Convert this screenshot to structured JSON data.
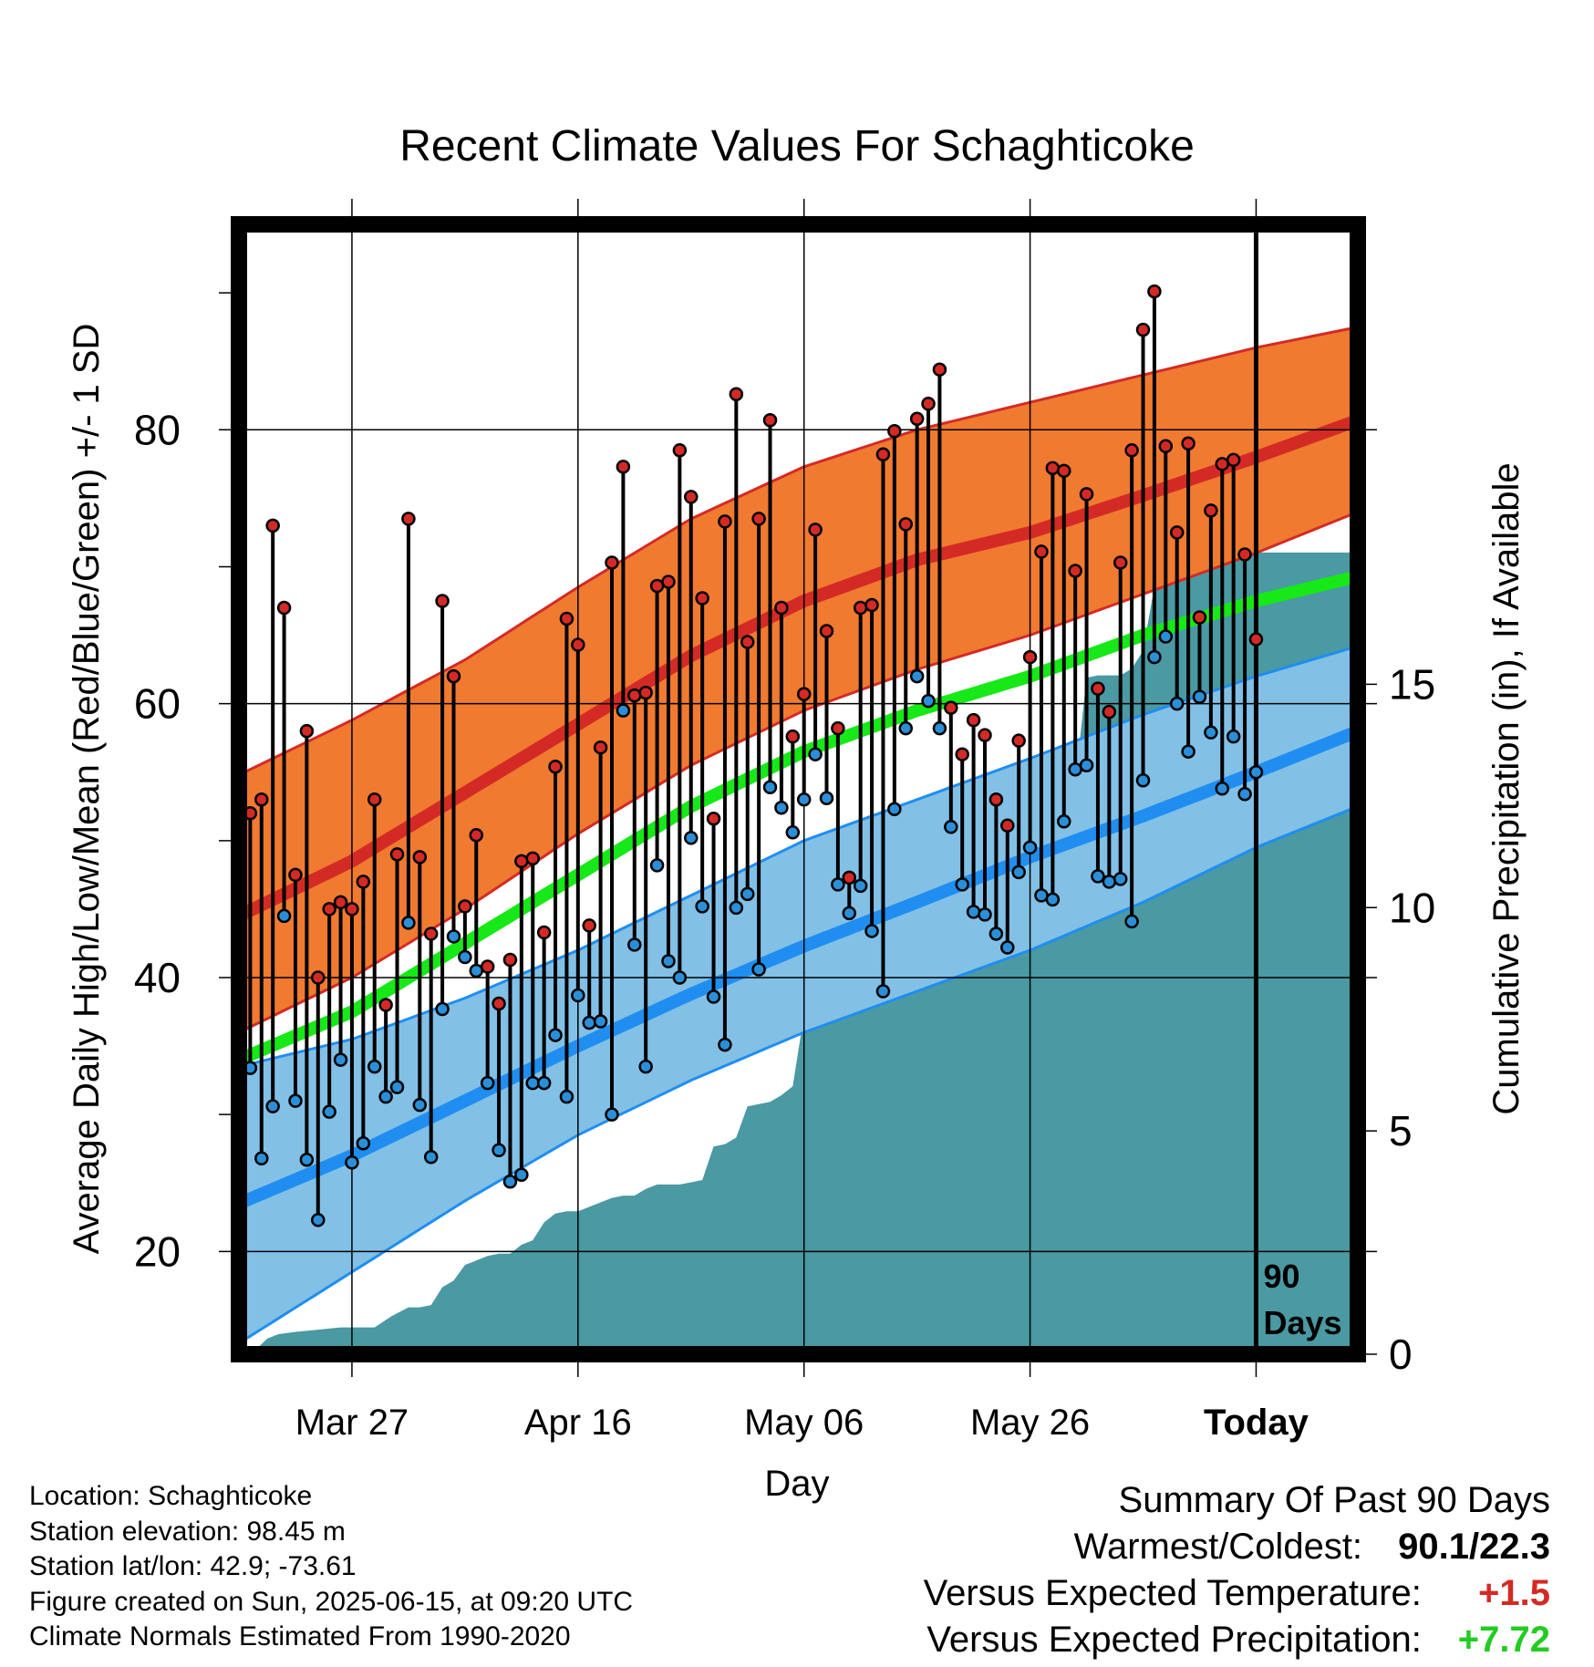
{
  "chart_data": {
    "type": "line",
    "title": "Recent Climate Values For Schaghticoke",
    "xlabel": "Day",
    "ylabel": "Average Daily High/Low/Mean (Red/Blue/Green) +/- 1 SD",
    "y2label": "Cumulative Precipitation (in), If Available",
    "ylim": [
      12.5,
      95
    ],
    "y_ticks": [
      20,
      40,
      60,
      80
    ],
    "y_minor_ticks": [
      30,
      50,
      70,
      90
    ],
    "y2lim": [
      0,
      25.3
    ],
    "y2_ticks": [
      0,
      5,
      10,
      15
    ],
    "x_range_days": [
      -90,
      9
    ],
    "x_ticks": [
      {
        "day": -80,
        "label": "Mar 27"
      },
      {
        "day": -60,
        "label": "Apr 16"
      },
      {
        "day": -40,
        "label": "May 06"
      },
      {
        "day": -20,
        "label": "May 26"
      },
      {
        "day": 0,
        "label": "Today"
      }
    ],
    "today_marker_label": [
      "90",
      "Days"
    ],
    "grid": true,
    "colors": {
      "high_band": "#f07a30",
      "high_mean": "#d42a25",
      "low_band": "#82c0e6",
      "low_mean": "#1f8ef0",
      "mean_line": "#17e817",
      "precip_fill": "#4a99a3",
      "high_point": "#d42a25",
      "low_point": "#2a8fd8"
    },
    "normals": {
      "days": [
        -90,
        -80,
        -70,
        -60,
        -50,
        -40,
        -30,
        -20,
        -10,
        0,
        9
      ],
      "high_mean": [
        44.5,
        48.5,
        53.5,
        58.5,
        63.5,
        67.5,
        70.5,
        72.5,
        75.2,
        78.0,
        80.7
      ],
      "high_upper": [
        54.8,
        58.8,
        63.2,
        68.5,
        73.5,
        77.3,
        80.0,
        82.0,
        84.0,
        86.0,
        87.5
      ],
      "high_lower": [
        36.0,
        40.0,
        45.0,
        50.5,
        55.5,
        59.5,
        62.5,
        65.0,
        68.0,
        71.0,
        74.0
      ],
      "low_mean": [
        23.5,
        27.0,
        31.0,
        35.0,
        38.8,
        42.3,
        45.5,
        48.8,
        51.8,
        55.0,
        58.0
      ],
      "low_upper": [
        33.5,
        35.5,
        38.5,
        42.0,
        46.0,
        50.0,
        53.0,
        56.0,
        59.2,
        62.0,
        64.2
      ],
      "low_lower": [
        13.3,
        18.5,
        23.7,
        28.5,
        32.5,
        36.0,
        39.0,
        42.0,
        45.5,
        49.5,
        52.5
      ],
      "mean": [
        34.0,
        37.5,
        42.5,
        47.5,
        52.5,
        56.5,
        59.5,
        62.0,
        65.0,
        67.5,
        69.3
      ]
    },
    "daily_high": [
      52,
      53,
      73,
      67,
      47.5,
      58,
      40,
      45,
      45.5,
      45,
      47,
      53,
      38,
      49,
      73.5,
      48.8,
      43.2,
      67.5,
      62,
      45.2,
      50.4,
      40.8,
      38.1,
      41.3,
      48.5,
      48.7,
      43.3,
      55.4,
      66.2,
      64.3,
      43.8,
      56.8,
      70.3,
      77.3,
      60.6,
      60.8,
      68.6,
      68.9,
      78.5,
      75.1,
      67.7,
      51.6,
      73.3,
      82.6,
      64.5,
      73.5,
      80.7,
      67.0,
      57.6,
      60.7,
      72.7,
      65.3,
      58.2,
      47.3,
      67.0,
      67.2,
      78.2,
      79.9,
      73.1,
      80.8,
      81.9,
      84.4,
      59.7,
      56.3,
      58.8,
      57.7,
      53.0,
      51.1,
      57.3,
      63.4,
      71.1,
      77.2,
      77.0,
      69.7,
      75.3,
      61.1,
      59.4,
      70.3,
      78.5,
      87.3,
      90.1,
      78.8,
      72.5,
      79.0,
      66.3,
      74.1,
      77.5,
      77.8,
      70.9,
      64.7
    ],
    "daily_low": [
      33.4,
      26.8,
      30.6,
      44.5,
      31.0,
      26.7,
      22.3,
      30.2,
      34.0,
      26.5,
      27.9,
      33.5,
      31.3,
      32.0,
      44.0,
      30.7,
      26.9,
      37.7,
      43.0,
      41.5,
      40.5,
      32.3,
      27.4,
      25.1,
      25.6,
      32.3,
      32.3,
      35.8,
      31.3,
      38.7,
      36.7,
      36.8,
      30.0,
      59.5,
      42.4,
      33.5,
      48.2,
      41.2,
      40.0,
      50.2,
      45.2,
      38.6,
      35.1,
      45.1,
      46.1,
      40.6,
      53.9,
      52.4,
      50.6,
      53.0,
      56.3,
      53.1,
      46.8,
      44.7,
      46.7,
      43.4,
      39.0,
      52.3,
      58.2,
      62.0,
      60.2,
      58.2,
      51.0,
      46.8,
      44.8,
      44.6,
      43.2,
      42.2,
      47.7,
      49.5,
      46.0,
      45.7,
      51.4,
      55.2,
      55.5,
      47.4,
      47.0,
      47.2,
      44.1,
      54.4,
      63.4,
      64.9,
      60.0,
      56.5,
      60.5,
      57.9,
      53.8,
      57.6,
      53.4,
      55.0
    ],
    "precip_cumulative": {
      "days": [
        -88.5,
        -87.5,
        -86.5,
        -85,
        -83,
        -81,
        -79.5,
        -78,
        -76.5,
        -75,
        -74,
        -73,
        -72,
        -71,
        -70,
        -69,
        -68,
        -67,
        -66,
        -65,
        -64,
        -63,
        -62,
        -61,
        -60,
        -59,
        -58,
        -57,
        -56,
        -55,
        -54,
        -53,
        -52,
        -51,
        -50,
        -49,
        -48,
        -47,
        -46,
        -45,
        -44,
        -43,
        -42,
        -41,
        -40,
        -39,
        -38,
        -37,
        -36,
        -35,
        -34,
        -33,
        -32,
        -31,
        -30,
        -29,
        -28,
        -27,
        -26,
        -25,
        -24,
        -23,
        -22,
        -21,
        -20,
        -19,
        -18,
        -17,
        -16,
        -15,
        -14,
        -13,
        -12,
        -11,
        -10,
        -9,
        -8,
        -7,
        -6,
        -5,
        -4,
        -3,
        -2,
        -1,
        0,
        9
      ],
      "values": [
        0.1,
        0.35,
        0.45,
        0.5,
        0.55,
        0.6,
        0.6,
        0.6,
        0.85,
        1.05,
        1.05,
        1.1,
        1.5,
        1.65,
        2.0,
        2.1,
        2.2,
        2.25,
        2.25,
        2.45,
        2.55,
        2.95,
        3.15,
        3.2,
        3.2,
        3.3,
        3.4,
        3.5,
        3.55,
        3.55,
        3.7,
        3.8,
        3.8,
        3.8,
        3.85,
        3.9,
        4.65,
        4.7,
        4.85,
        5.55,
        5.6,
        5.65,
        5.8,
        6.0,
        7.6,
        8.5,
        8.95,
        8.9,
        8.95,
        10.3,
        11.3,
        11.55,
        11.55,
        11.55,
        11.6,
        11.8,
        12.15,
        12.2,
        12.2,
        12.3,
        12.55,
        12.7,
        12.7,
        12.7,
        12.7,
        12.7,
        12.8,
        12.8,
        12.8,
        15.15,
        15.2,
        15.2,
        15.2,
        15.35,
        15.75,
        17.2,
        17.4,
        17.65,
        17.65,
        17.8,
        17.95,
        17.95,
        17.95,
        17.95,
        17.95,
        17.95
      ]
    }
  },
  "footer": {
    "location": "Location: Schaghticoke",
    "elevation": "Station elevation: 98.45 m",
    "latlon": "Station lat/lon: 42.9; -73.61",
    "created": "Figure created on Sun, 2025-06-15, at 09:20 UTC",
    "normals": "Climate Normals Estimated From 1990-2020"
  },
  "summary": {
    "heading": "Summary Of Past 90 Days",
    "warm_cold_label": "Warmest/Coldest:",
    "warm_cold_value": "90.1/22.3",
    "temp_label": "Versus Expected Temperature:",
    "temp_value": "+1.5",
    "temp_color": "#d42a25",
    "precip_label": "Versus Expected Precipitation:",
    "precip_value": "+7.72",
    "precip_color": "#22cc22"
  }
}
